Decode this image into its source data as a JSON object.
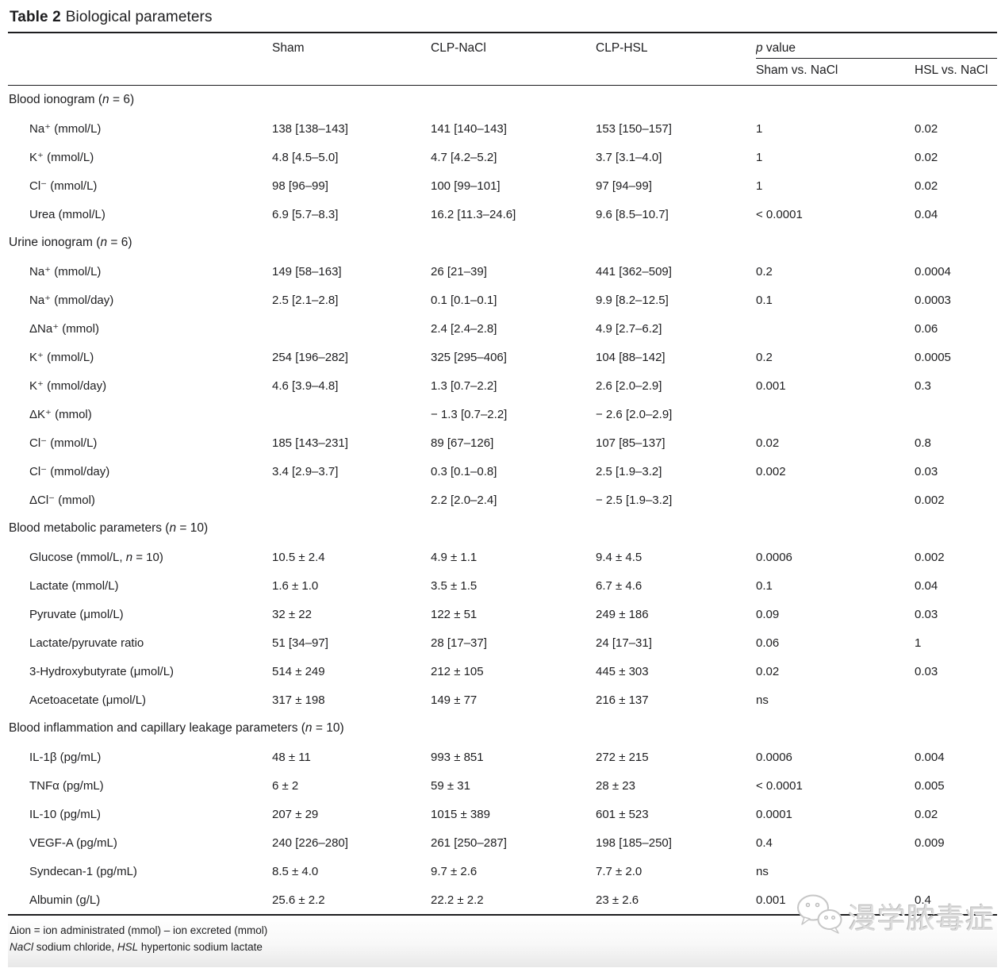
{
  "title": {
    "bold": "Table 2",
    "rest": "Biological parameters"
  },
  "columns": {
    "sham": "Sham",
    "clp_nacl": "CLP-NaCl",
    "clp_hsl": "CLP-HSL",
    "p_value": "*p* value",
    "p_sub_sham_vs_nacl": "Sham vs. NaCl",
    "p_sub_hsl_vs_nacl": "HSL vs. NaCl"
  },
  "table": {
    "rows": [
      {
        "type": "section",
        "label": "Blood ionogram (*n* = 6)"
      },
      {
        "type": "data",
        "cells": [
          "Na⁺ (mmol/L)",
          "138 [138–143]",
          "141 [140–143]",
          "153 [150–157]",
          "1",
          "0.02"
        ]
      },
      {
        "type": "data",
        "cells": [
          "K⁺ (mmol/L)",
          "4.8 [4.5–5.0]",
          "4.7 [4.2–5.2]",
          "3.7 [3.1–4.0]",
          "1",
          "0.02"
        ]
      },
      {
        "type": "data",
        "cells": [
          "Cl⁻ (mmol/L)",
          "98 [96–99]",
          "100 [99–101]",
          "97 [94–99]",
          "1",
          "0.02"
        ]
      },
      {
        "type": "data",
        "cells": [
          "Urea (mmol/L)",
          "6.9 [5.7–8.3]",
          "16.2 [11.3–24.6]",
          "9.6 [8.5–10.7]",
          "< 0.0001",
          "0.04"
        ]
      },
      {
        "type": "section",
        "label": "Urine ionogram (*n* = 6)"
      },
      {
        "type": "data",
        "cells": [
          "Na⁺ (mmol/L)",
          "149 [58–163]",
          "26 [21–39]",
          "441 [362–509]",
          "0.2",
          "0.0004"
        ]
      },
      {
        "type": "data",
        "cells": [
          "Na⁺ (mmol/day)",
          "2.5 [2.1–2.8]",
          "0.1 [0.1–0.1]",
          "9.9 [8.2–12.5]",
          "0.1",
          "0.0003"
        ]
      },
      {
        "type": "data",
        "cells": [
          "ΔNa⁺ (mmol)",
          "",
          "2.4 [2.4–2.8]",
          "4.9 [2.7–6.2]",
          "",
          "0.06"
        ]
      },
      {
        "type": "data",
        "cells": [
          "K⁺ (mmol/L)",
          "254 [196–282]",
          "325 [295–406]",
          "104 [88–142]",
          "0.2",
          "0.0005"
        ]
      },
      {
        "type": "data",
        "cells": [
          "K⁺ (mmol/day)",
          "4.6 [3.9–4.8]",
          "1.3 [0.7–2.2]",
          "2.6 [2.0–2.9]",
          "0.001",
          "0.3"
        ]
      },
      {
        "type": "data",
        "cells": [
          "ΔK⁺ (mmol)",
          "",
          "− 1.3 [0.7–2.2]",
          "− 2.6 [2.0–2.9]",
          "",
          ""
        ]
      },
      {
        "type": "data",
        "cells": [
          "Cl⁻ (mmol/L)",
          "185 [143–231]",
          "89 [67–126]",
          "107 [85–137]",
          "0.02",
          "0.8"
        ]
      },
      {
        "type": "data",
        "cells": [
          "Cl⁻ (mmol/day)",
          "3.4 [2.9–3.7]",
          "0.3 [0.1–0.8]",
          "2.5 [1.9–3.2]",
          "0.002",
          "0.03"
        ]
      },
      {
        "type": "data",
        "cells": [
          "ΔCl⁻ (mmol)",
          "",
          "2.2 [2.0–2.4]",
          "− 2.5 [1.9–3.2]",
          "",
          "0.002"
        ]
      },
      {
        "type": "section",
        "label": "Blood metabolic parameters (*n* = 10)"
      },
      {
        "type": "data",
        "cells": [
          "Glucose (mmol/L, *n* = 10)",
          "10.5 ± 2.4",
          "4.9 ± 1.1",
          "9.4 ± 4.5",
          "0.0006",
          "0.002"
        ]
      },
      {
        "type": "data",
        "cells": [
          "Lactate (mmol/L)",
          "1.6 ± 1.0",
          "3.5 ± 1.5",
          "6.7 ± 4.6",
          "0.1",
          "0.04"
        ]
      },
      {
        "type": "data",
        "cells": [
          "Pyruvate (μmol/L)",
          "32 ± 22",
          "122 ± 51",
          "249 ± 186",
          "0.09",
          "0.03"
        ]
      },
      {
        "type": "data",
        "cells": [
          "Lactate/pyruvate ratio",
          "51 [34–97]",
          "28 [17–37]",
          "24 [17–31]",
          "0.06",
          "1"
        ]
      },
      {
        "type": "data",
        "cells": [
          "3-Hydroxybutyrate (μmol/L)",
          "514 ± 249",
          "212 ± 105",
          "445 ± 303",
          "0.02",
          "0.03"
        ]
      },
      {
        "type": "data",
        "cells": [
          "Acetoacetate (μmol/L)",
          "317 ± 198",
          "149 ± 77",
          "216 ± 137",
          "ns",
          ""
        ]
      },
      {
        "type": "section",
        "label": "Blood inflammation and capillary leakage parameters (*n* = 10)"
      },
      {
        "type": "data",
        "cells": [
          "IL-1β (pg/mL)",
          "48 ± 11",
          "993 ± 851",
          "272 ± 215",
          "0.0006",
          "0.004"
        ]
      },
      {
        "type": "data",
        "cells": [
          "TNFα (pg/mL)",
          "6 ± 2",
          "59 ± 31",
          "28 ± 23",
          "< 0.0001",
          "0.005"
        ]
      },
      {
        "type": "data",
        "cells": [
          "IL-10 (pg/mL)",
          "207 ± 29",
          "1015 ± 389",
          "601 ± 523",
          "0.0001",
          "0.02"
        ]
      },
      {
        "type": "data",
        "cells": [
          "VEGF-A (pg/mL)",
          "240 [226–280]",
          "261 [250–287]",
          "198 [185–250]",
          "0.4",
          "0.009"
        ]
      },
      {
        "type": "data",
        "cells": [
          "Syndecan-1 (pg/mL)",
          "8.5 ± 4.0",
          "9.7 ± 2.6",
          "7.7 ± 2.0",
          "ns",
          ""
        ]
      },
      {
        "type": "data",
        "cells": [
          "Albumin (g/L)",
          "25.6 ± 2.2",
          "22.2 ± 2.2",
          "23 ± 2.6",
          "0.001",
          "0.4"
        ]
      }
    ]
  },
  "footnotes": {
    "line1": "Δion = ion administrated (mmol) – ion excreted (mmol)",
    "line2": "*NaCl* sodium chloride, *HSL* hypertonic sodium lactate"
  },
  "watermark": {
    "icon": "wechat-icon",
    "text": "漫学脓毒症"
  },
  "colors": {
    "text": "#1d1d1f",
    "rule": "#1d1d1f",
    "watermark_gray": "#dcdcdc",
    "footer_gradient_end": "#e8e8e8"
  }
}
